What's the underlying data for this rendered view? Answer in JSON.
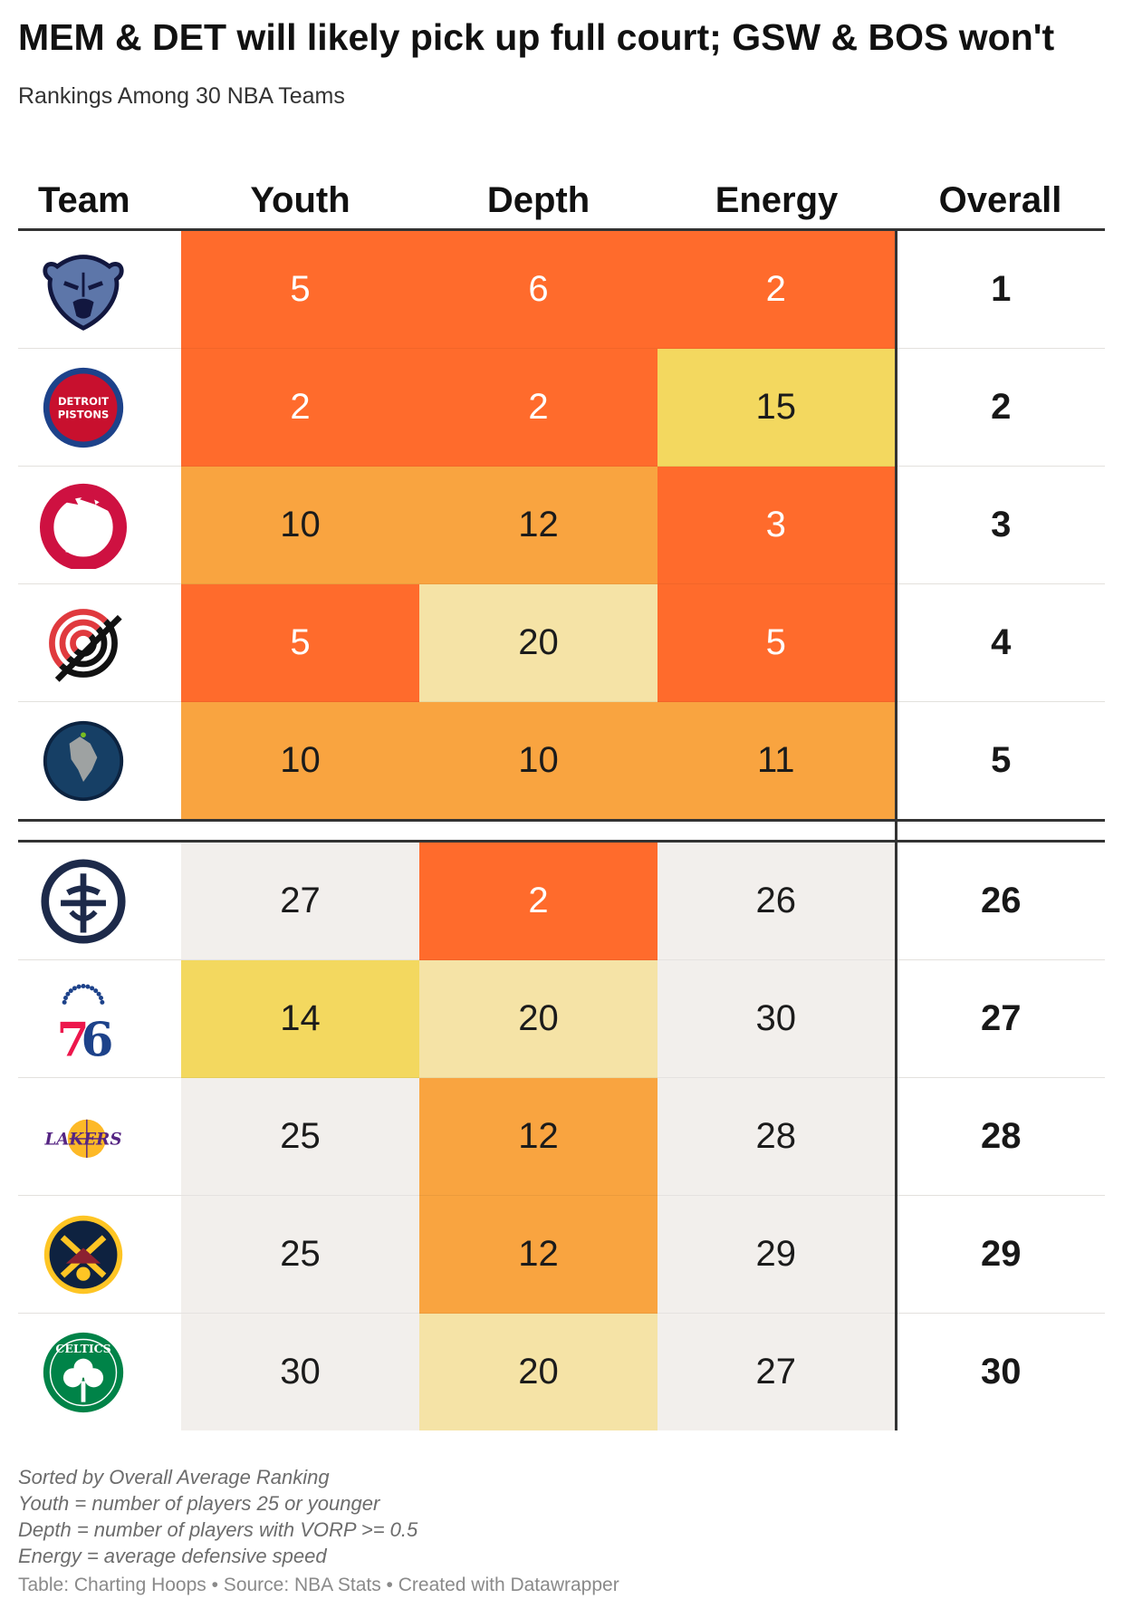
{
  "title": "MEM & DET will likely pick up full court; GSW & BOS won't",
  "subtitle": "Rankings Among 30 NBA Teams",
  "chart_data": {
    "type": "table",
    "columns": [
      "Team",
      "Youth",
      "Depth",
      "Energy",
      "Overall"
    ],
    "top_rows": [
      {
        "team": "Memphis Grizzlies",
        "logo": "grizzlies-logo",
        "youth": 5,
        "depth": 6,
        "energy": 2,
        "overall": 1
      },
      {
        "team": "Detroit Pistons",
        "logo": "pistons-logo",
        "logo_text": [
          "DETROIT",
          "PISTONS"
        ],
        "youth": 2,
        "depth": 2,
        "energy": 15,
        "overall": 2
      },
      {
        "team": "Toronto Raptors",
        "logo": "raptors-logo",
        "youth": 10,
        "depth": 12,
        "energy": 3,
        "overall": 3
      },
      {
        "team": "Portland Trail Blazers",
        "logo": "trail-blazers-logo",
        "youth": 5,
        "depth": 20,
        "energy": 5,
        "overall": 4
      },
      {
        "team": "Minnesota Timberwolves",
        "logo": "timberwolves-logo",
        "youth": 10,
        "depth": 10,
        "energy": 11,
        "overall": 5
      }
    ],
    "bottom_rows": [
      {
        "team": "Golden State Warriors",
        "logo": "warriors-logo",
        "youth": 27,
        "depth": 2,
        "energy": 26,
        "overall": 26
      },
      {
        "team": "Philadelphia 76ers",
        "logo": "sixers-logo",
        "logo_text": [
          "76"
        ],
        "youth": 14,
        "depth": 20,
        "energy": 30,
        "overall": 27
      },
      {
        "team": "Los Angeles Lakers",
        "logo": "lakers-logo",
        "logo_text": [
          "LAKERS"
        ],
        "youth": 25,
        "depth": 12,
        "energy": 28,
        "overall": 28
      },
      {
        "team": "Denver Nuggets",
        "logo": "nuggets-logo",
        "youth": 25,
        "depth": 12,
        "energy": 29,
        "overall": 29
      },
      {
        "team": "Boston Celtics",
        "logo": "celtics-logo",
        "logo_text": [
          "CELTICS"
        ],
        "youth": 30,
        "depth": 20,
        "energy": 27,
        "overall": 30
      }
    ],
    "color_scale": [
      {
        "max": 7,
        "color": "#ff6b2c",
        "text_color": "#ffffff"
      },
      {
        "max": 12,
        "color": "#f9a440",
        "text_color": "#1b1b1b"
      },
      {
        "max": 15,
        "color": "#f3d85f",
        "text_color": "#1b1b1b"
      },
      {
        "max": 20,
        "color": "#f5e3a6",
        "text_color": "#1b1b1b"
      },
      {
        "max": 30,
        "color": "#f2efec",
        "text_color": "#1b1b1b"
      }
    ]
  },
  "notes": [
    "Sorted by Overall Average Ranking",
    "Youth = number of players 25 or younger",
    "Depth = number of players with VORP >= 0.5",
    "Energy = average defensive speed"
  ],
  "source": "Table: Charting Hoops • Source: NBA Stats • Created with Datawrapper"
}
